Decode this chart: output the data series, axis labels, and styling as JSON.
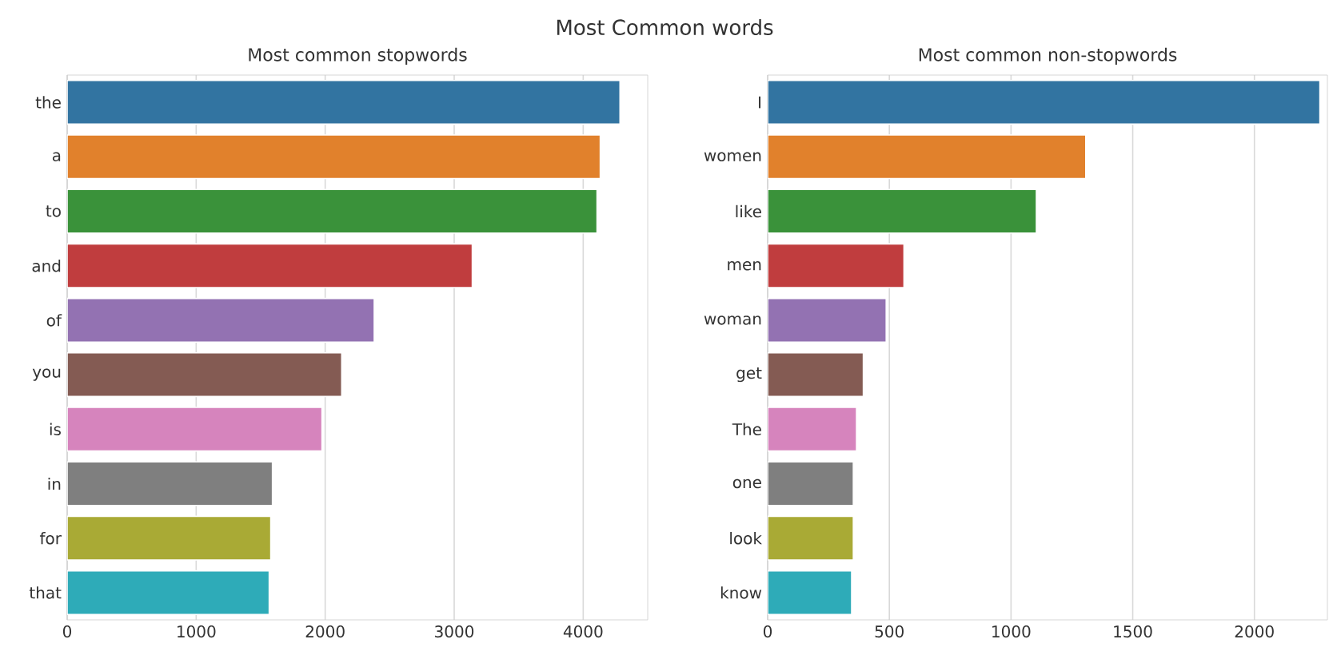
{
  "chart_data": [
    {
      "type": "bar",
      "orientation": "horizontal",
      "title": "Most common stopwords",
      "annotations": [
        "Most Common words"
      ],
      "categories": [
        "the",
        "a",
        "to",
        "and",
        "of",
        "you",
        "is",
        "in",
        "for",
        "that"
      ],
      "values": [
        4285,
        4132,
        4107,
        3140,
        2380,
        2128,
        1975,
        1591,
        1578,
        1566
      ],
      "colors": [
        "#3274a1",
        "#e1812c",
        "#3a923a",
        "#c03d3e",
        "#9372b2",
        "#845b53",
        "#d684bd",
        "#7f7f7f",
        "#a9aa35",
        "#2eabb8"
      ],
      "xlim": [
        0,
        4500
      ],
      "xticks": [
        0,
        1000,
        2000,
        3000,
        4000
      ],
      "grid": "x"
    },
    {
      "type": "bar",
      "orientation": "horizontal",
      "title": "Most common non-stopwords",
      "categories": [
        "I",
        "women",
        "like",
        "men",
        "woman",
        "get",
        "The",
        "one",
        "look",
        "know"
      ],
      "values": [
        2269,
        1307,
        1104,
        560,
        487,
        393,
        365,
        352,
        352,
        345
      ],
      "colors": [
        "#3274a1",
        "#e1812c",
        "#3a923a",
        "#c03d3e",
        "#9372b2",
        "#845b53",
        "#d684bd",
        "#7f7f7f",
        "#a9aa35",
        "#2eabb8"
      ],
      "xlim": [
        0,
        2300
      ],
      "xticks": [
        0,
        500,
        1000,
        1500,
        2000
      ],
      "grid": "x"
    }
  ]
}
